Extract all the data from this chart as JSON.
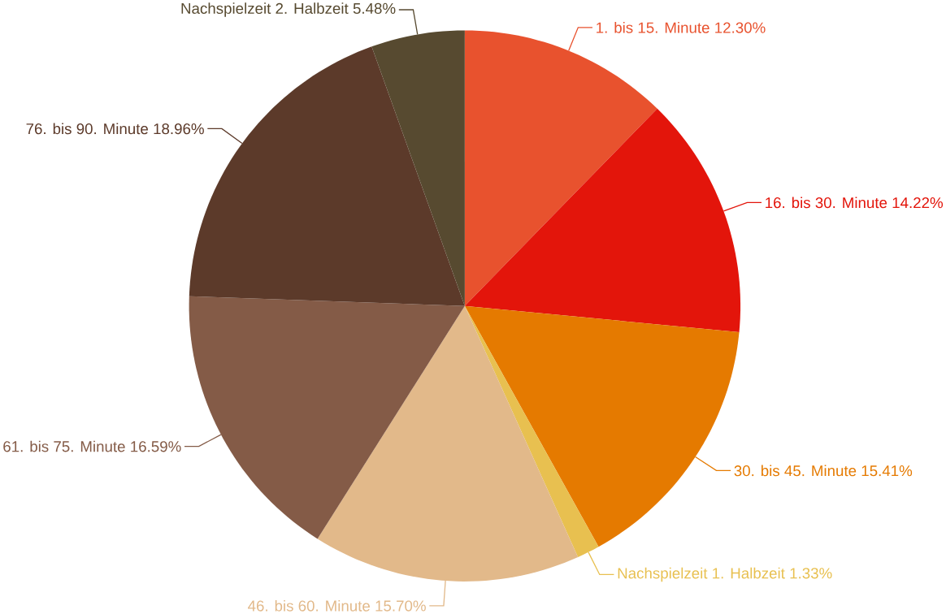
{
  "chart_data": {
    "type": "pie",
    "categories": [
      "1. bis 15. Minute",
      "16. bis 30. Minute",
      "30. bis 45. Minute",
      "Nachspielzeit 1. Halbzeit",
      "46. bis 60. Minute",
      "61. bis 75. Minute",
      "76. bis 90. Minute",
      "Nachspielzeit 2. Halbzeit"
    ],
    "values": [
      12.3,
      14.22,
      15.41,
      1.33,
      15.7,
      16.59,
      18.96,
      5.48
    ],
    "value_labels": [
      "12.30%",
      "14.22%",
      "15.41%",
      "1.33%",
      "15.70%",
      "16.59%",
      "18.96%",
      "5.48%"
    ],
    "colors": [
      "#e8522e",
      "#e3150b",
      "#e57a00",
      "#e8c050",
      "#e2b98a",
      "#845b47",
      "#5c3a2a",
      "#574a30"
    ]
  }
}
